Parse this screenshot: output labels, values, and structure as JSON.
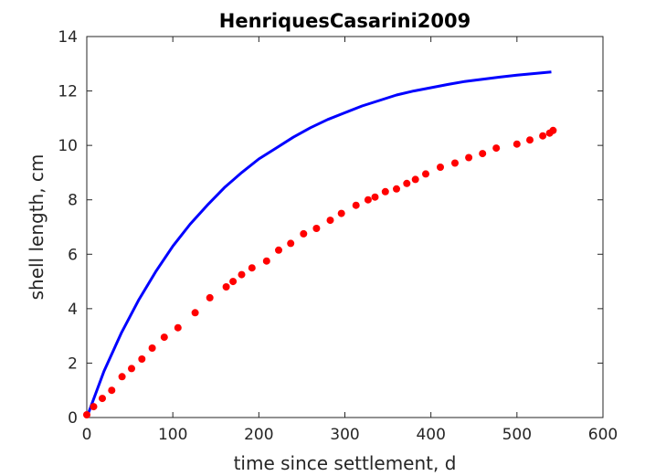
{
  "chart_data": {
    "type": "scatter",
    "title": "HenriquesCasarini2009",
    "xlabel": "time since settlement, d",
    "ylabel": "shell length, cm",
    "xlim": [
      0,
      600
    ],
    "ylim": [
      0,
      14
    ],
    "xticks": [
      0,
      100,
      200,
      300,
      400,
      500,
      600
    ],
    "yticks": [
      0,
      2,
      4,
      6,
      8,
      10,
      12,
      14
    ],
    "grid": false,
    "series": [
      {
        "kind": "points",
        "color": "#ff0000",
        "points": [
          [
            0,
            0.1
          ],
          [
            8,
            0.4
          ],
          [
            18,
            0.7
          ],
          [
            29,
            1.0
          ],
          [
            41,
            1.5
          ],
          [
            52,
            1.8
          ],
          [
            64,
            2.15
          ],
          [
            76,
            2.55
          ],
          [
            90,
            2.95
          ],
          [
            106,
            3.3
          ],
          [
            126,
            3.85
          ],
          [
            143,
            4.4
          ],
          [
            162,
            4.8
          ],
          [
            170,
            5.0
          ],
          [
            180,
            5.25
          ],
          [
            192,
            5.5
          ],
          [
            209,
            5.75
          ],
          [
            223,
            6.15
          ],
          [
            237,
            6.4
          ],
          [
            252,
            6.75
          ],
          [
            267,
            6.95
          ],
          [
            283,
            7.25
          ],
          [
            296,
            7.5
          ],
          [
            313,
            7.8
          ],
          [
            327,
            8.0
          ],
          [
            335,
            8.1
          ],
          [
            347,
            8.3
          ],
          [
            360,
            8.4
          ],
          [
            372,
            8.6
          ],
          [
            382,
            8.75
          ],
          [
            394,
            8.95
          ],
          [
            411,
            9.2
          ],
          [
            428,
            9.35
          ],
          [
            444,
            9.55
          ],
          [
            460,
            9.7
          ],
          [
            476,
            9.9
          ],
          [
            500,
            10.05
          ],
          [
            515,
            10.2
          ],
          [
            530,
            10.35
          ],
          [
            538,
            10.45
          ],
          [
            542,
            10.55
          ]
        ]
      },
      {
        "kind": "line",
        "color": "#0000ff",
        "points": [
          [
            0,
            0.0
          ],
          [
            20,
            1.7
          ],
          [
            40,
            3.1
          ],
          [
            60,
            4.3
          ],
          [
            80,
            5.35
          ],
          [
            100,
            6.3
          ],
          [
            120,
            7.1
          ],
          [
            140,
            7.8
          ],
          [
            160,
            8.45
          ],
          [
            180,
            9.0
          ],
          [
            200,
            9.5
          ],
          [
            220,
            9.9
          ],
          [
            240,
            10.3
          ],
          [
            260,
            10.65
          ],
          [
            280,
            10.95
          ],
          [
            300,
            11.2
          ],
          [
            320,
            11.45
          ],
          [
            340,
            11.65
          ],
          [
            360,
            11.85
          ],
          [
            380,
            12.0
          ],
          [
            400,
            12.12
          ],
          [
            420,
            12.24
          ],
          [
            440,
            12.35
          ],
          [
            460,
            12.43
          ],
          [
            480,
            12.51
          ],
          [
            500,
            12.58
          ],
          [
            520,
            12.64
          ],
          [
            540,
            12.7
          ]
        ]
      }
    ]
  }
}
